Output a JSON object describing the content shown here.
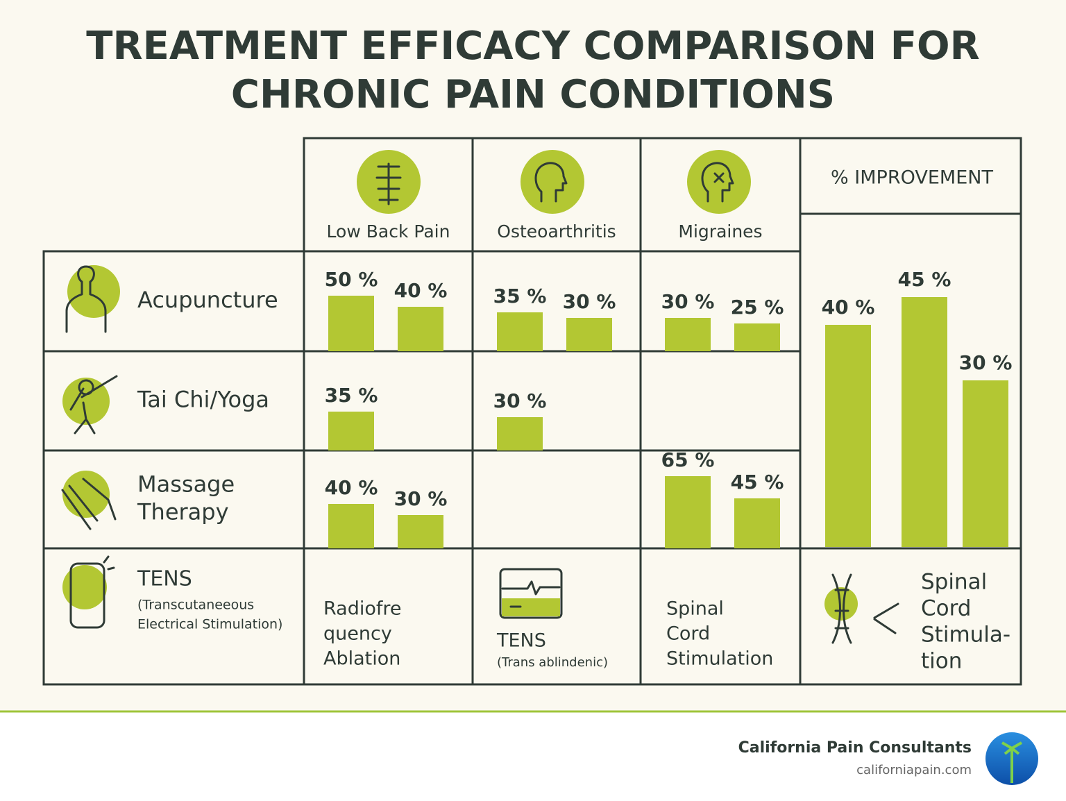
{
  "title_lines": [
    "TREATMENT EFFICACY COMPARISON FOR",
    "CHRONIC PAIN CONDITIONS"
  ],
  "conditions": [
    "Low Back Pain",
    "Osteoarthritis",
    "Migraines"
  ],
  "treatments": [
    {
      "name_lines": [
        "Acupuncture"
      ],
      "cells": [
        {
          "values": [
            50,
            40
          ],
          "value_labels": [
            "50 %",
            "40 %"
          ]
        },
        {
          "values": [
            35,
            30
          ],
          "value_labels": [
            "35 %",
            "30 %"
          ]
        },
        {
          "values": [
            30,
            25
          ],
          "value_labels": [
            "30 %",
            "25 %"
          ]
        }
      ]
    },
    {
      "name_lines": [
        "Tai Chi/Yoga"
      ],
      "cells": [
        {
          "values": [
            35
          ],
          "value_labels": [
            "35 %"
          ]
        },
        {
          "values": [
            30
          ],
          "value_labels": [
            "30 %"
          ]
        },
        {
          "values": [],
          "value_labels": []
        }
      ]
    },
    {
      "name_lines": [
        "Massage",
        "Therapy"
      ],
      "cells": [
        {
          "values": [
            40,
            30
          ],
          "value_labels": [
            "40 %",
            "30 %"
          ]
        },
        {
          "values": [],
          "value_labels": []
        },
        {
          "values": [
            65,
            45
          ],
          "value_labels": [
            "65 %",
            "45 %"
          ]
        }
      ]
    }
  ],
  "tens": {
    "name": "TENS",
    "detail_lines": [
      "(Transcutaneeous",
      "Electrical Stimulation)"
    ]
  },
  "bottom_cells": [
    {
      "lines": [
        "Radiofre",
        "quency",
        "Ablation"
      ]
    },
    {
      "lines": [
        "TENS"
      ],
      "note": "(Trans ablindenic)"
    },
    {
      "lines": [
        "Spinal",
        "Cord",
        "Stimulation"
      ]
    },
    {
      "lines": [
        "Spinal",
        "Cord",
        "Stimula-",
        "tion"
      ]
    }
  ],
  "improvement": {
    "title": "% IMPROVEMENT",
    "values": [
      40,
      45,
      30
    ],
    "value_labels": [
      "40 %",
      "45 %",
      "30 %"
    ],
    "color": "#b3c733"
  },
  "bar_color": "#b3c733",
  "footer": {
    "company": "California Pain Consultants",
    "url": "californiapain.com"
  }
}
